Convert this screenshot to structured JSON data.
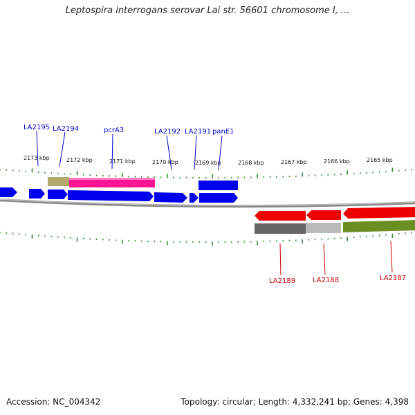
{
  "title": "Leptospira interrogans serovar Lai str. 56601 chromosome I, ...",
  "footer": {
    "accession": "Accession: NC_004342",
    "topology": "Topology: circular; Length: 4,332,241 bp; Genes: 4,398"
  },
  "scale": {
    "unit": "kbp",
    "tick_labels": [
      "2173 kbp",
      "2172 kbp",
      "2171 kbp",
      "2170 kbp",
      "2169 kbp",
      "2168 kbp",
      "2167 kbp",
      "2166 kbp",
      "2165 kbp"
    ]
  },
  "genes_forward": [
    {
      "label": "LA2195",
      "color": "#0000cc"
    },
    {
      "label": "LA2194",
      "color": "#0000cc"
    },
    {
      "label": "pcrA3",
      "color": "#0000cc"
    },
    {
      "label": "LA2192",
      "color": "#0000cc"
    },
    {
      "label": "LA2191",
      "color": "#0000cc"
    },
    {
      "label": "panE1",
      "color": "#0000cc"
    }
  ],
  "genes_reverse": [
    {
      "label": "LA2189",
      "color": "#cc0000"
    },
    {
      "label": "LA2188",
      "color": "#cc0000"
    },
    {
      "label": "LA2187",
      "color": "#cc0000"
    }
  ],
  "colors": {
    "forward_gene": "#0000ff",
    "reverse_gene": "#ff0000",
    "backbone": "#888888",
    "ticks": "#2e8b2e",
    "feature_khaki": "#b3a96a",
    "feature_magenta": "#ff1493",
    "feature_dark_gray": "#666666",
    "feature_light_gray": "#bbbbbb",
    "feature_olive": "#6b8e23"
  }
}
